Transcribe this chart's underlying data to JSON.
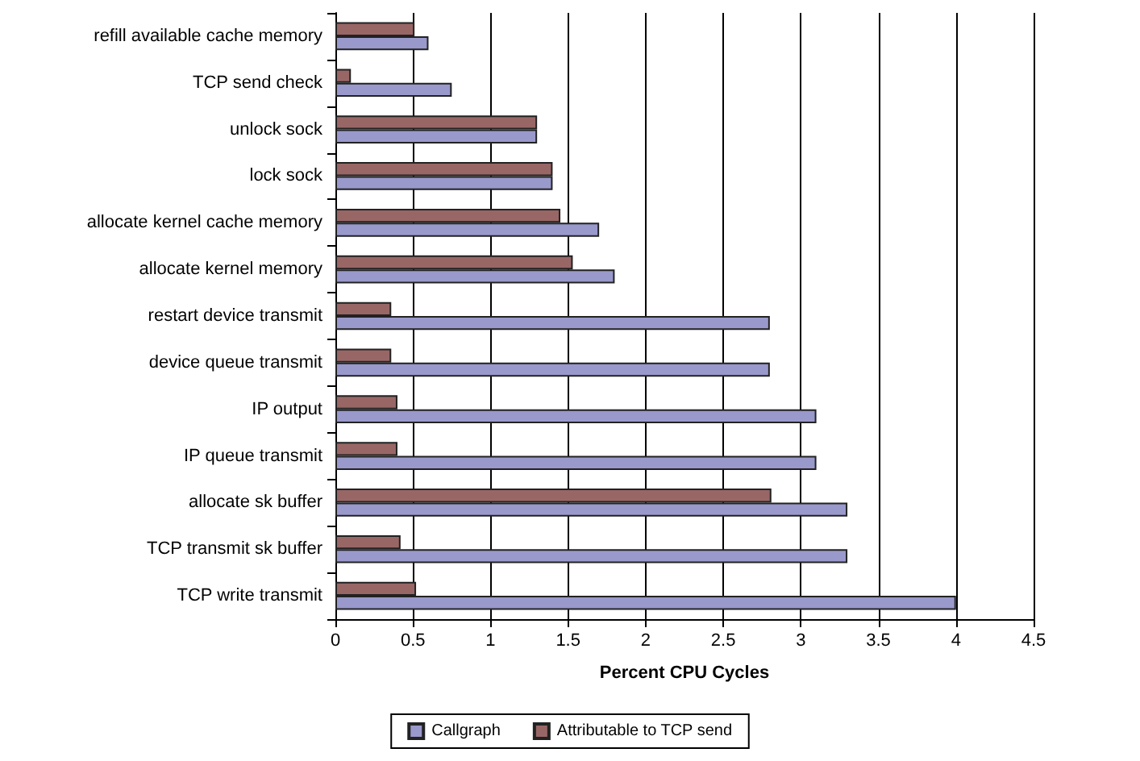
{
  "chart_data": {
    "type": "bar",
    "orientation": "horizontal",
    "xlabel": "Percent CPU Cycles",
    "categories": [
      "refill available cache memory",
      "TCP send check",
      "unlock sock",
      "lock sock",
      "allocate kernel cache memory",
      "allocate kernel memory",
      "restart device transmit",
      "device queue transmit",
      "IP output",
      "IP queue transmit",
      "allocate sk buffer",
      "TCP transmit sk buffer",
      "TCP write transmit"
    ],
    "series": [
      {
        "name": "Callgraph",
        "color": "#9999cc",
        "values": [
          0.6,
          0.75,
          1.3,
          1.4,
          1.7,
          1.8,
          2.8,
          2.8,
          3.1,
          3.1,
          3.3,
          3.3,
          4.0
        ]
      },
      {
        "name": "Attributable to TCP send",
        "color": "#996666",
        "values": [
          0.51,
          0.1,
          1.3,
          1.4,
          1.45,
          1.53,
          0.36,
          0.36,
          0.4,
          0.4,
          2.81,
          0.42,
          0.52
        ]
      }
    ],
    "xlim": [
      0,
      4.5
    ],
    "xticks": [
      0,
      0.5,
      1,
      1.5,
      2,
      2.5,
      3,
      3.5,
      4,
      4.5
    ],
    "grid": "x",
    "legend": "bottom"
  }
}
